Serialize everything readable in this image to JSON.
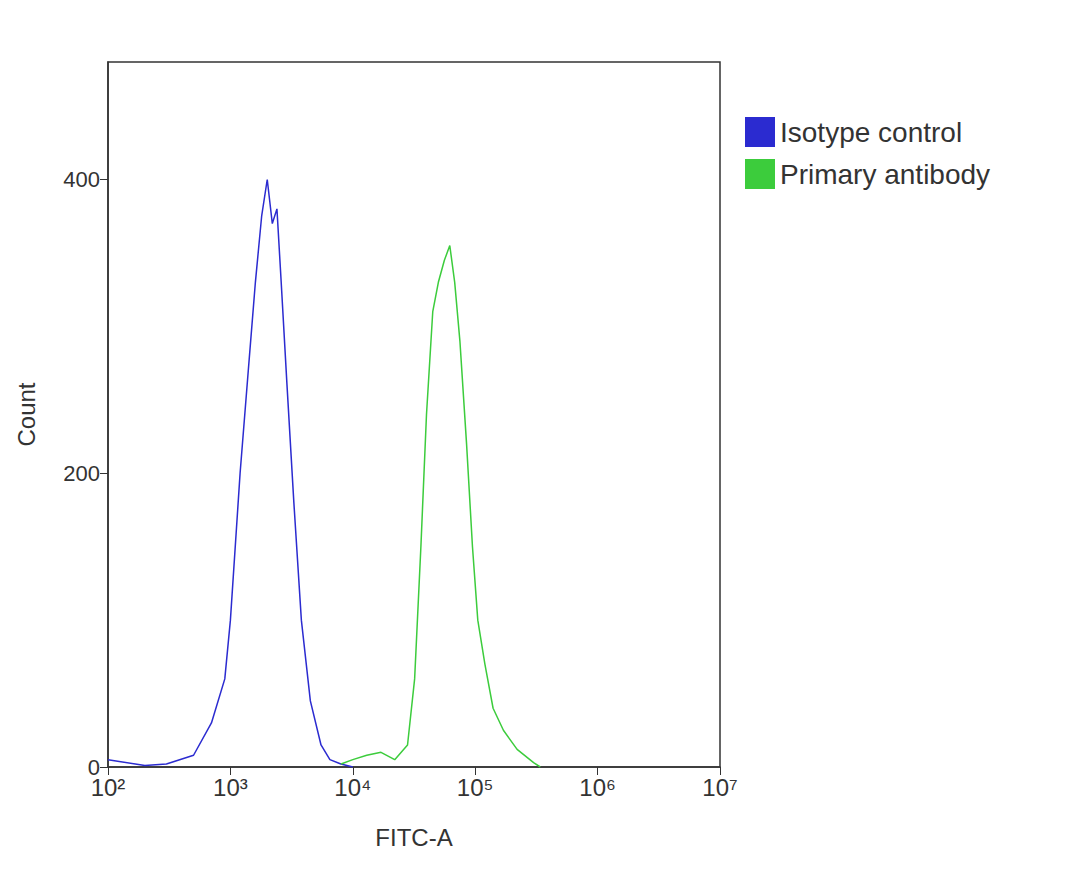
{
  "chart_data": {
    "type": "line",
    "x_label": "FITC-A",
    "y_label": "Count",
    "log": "x",
    "grid": false,
    "legend": "right",
    "xlim": [
      100,
      10000000
    ],
    "xticks": [
      {
        "value": 100,
        "label": "10²"
      },
      {
        "value": 1000,
        "label": "10³"
      },
      {
        "value": 10000,
        "label": "10⁴"
      },
      {
        "value": 100000,
        "label": "10⁵"
      },
      {
        "value": 1000000,
        "label": "10⁶"
      },
      {
        "value": 10000000,
        "label": "10⁷"
      }
    ],
    "ylim": [
      0,
      480
    ],
    "yticks": [
      0,
      200,
      400
    ],
    "series": [
      {
        "name": "Isotype control",
        "color": "#2b2bd0",
        "x": [
          100,
          200,
          300,
          500,
          700,
          900,
          1000,
          1200,
          1400,
          1600,
          1800,
          2000,
          2200,
          2400,
          2600,
          2900,
          3300,
          3800,
          4500,
          5500,
          6500,
          8000,
          10000
        ],
        "values": [
          5,
          1,
          2,
          8,
          30,
          60,
          100,
          200,
          270,
          330,
          375,
          400,
          370,
          380,
          330,
          260,
          180,
          100,
          45,
          15,
          5,
          2,
          0
        ]
      },
      {
        "name": "Primary antibody",
        "color": "#3ccc3c",
        "x": [
          8000,
          10000,
          13000,
          17000,
          22000,
          28000,
          32000,
          36000,
          40000,
          45000,
          50000,
          56000,
          62000,
          68000,
          75000,
          85000,
          95000,
          105000,
          120000,
          140000,
          170000,
          220000,
          300000,
          340000
        ],
        "values": [
          2,
          5,
          8,
          10,
          5,
          15,
          60,
          150,
          240,
          310,
          330,
          345,
          355,
          330,
          290,
          220,
          150,
          100,
          70,
          40,
          25,
          12,
          3,
          0
        ]
      }
    ]
  }
}
